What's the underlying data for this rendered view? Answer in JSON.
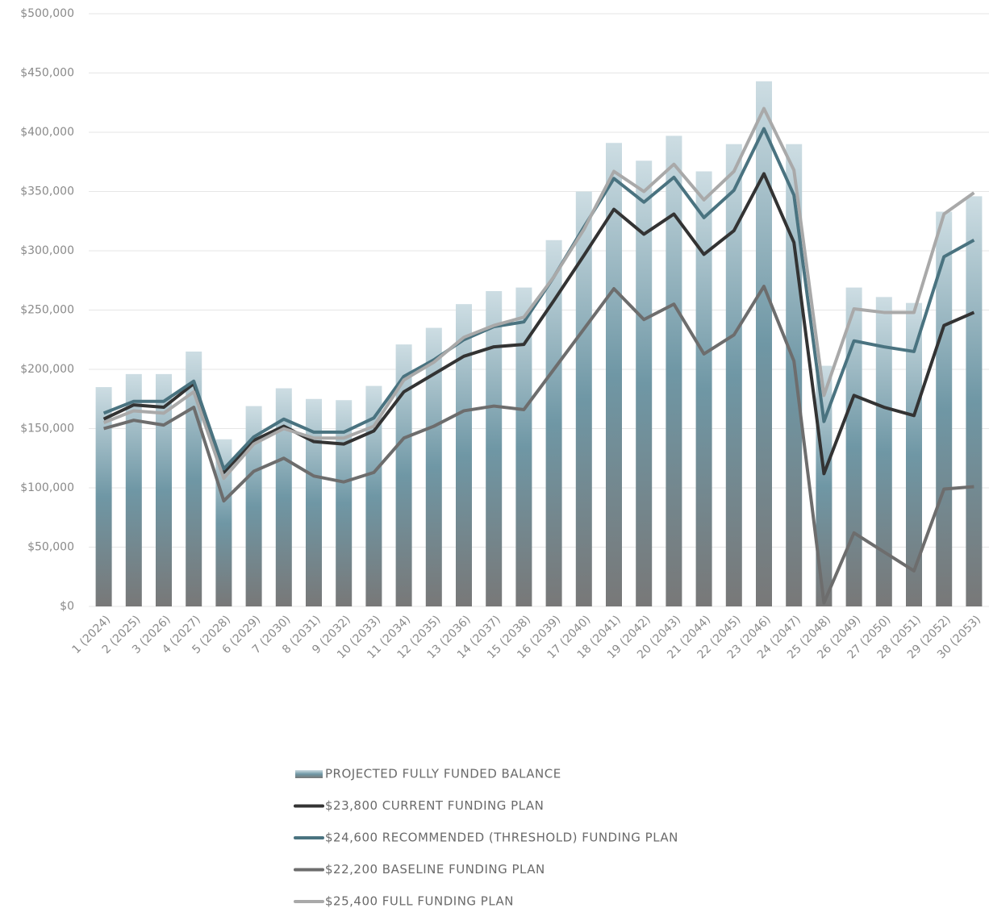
{
  "chart_data": {
    "type": "bar",
    "categories": [
      "1 (2024)",
      "2 (2025)",
      "3 (2026)",
      "4 (2027)",
      "5 (2028)",
      "6 (2029)",
      "7 (2030)",
      "8 (2031)",
      "9 (2032)",
      "10 (2033)",
      "11 (2034)",
      "12 (2035)",
      "13 (2036)",
      "14 (2037)",
      "15 (2038)",
      "16 (2039)",
      "17 (2040)",
      "18 (2041)",
      "19 (2042)",
      "20 (2043)",
      "21 (2044)",
      "22 (2045)",
      "23 (2046)",
      "24 (2047)",
      "25 (2048)",
      "26 (2049)",
      "27 (2050)",
      "28 (2051)",
      "29 (2052)",
      "30 (2053)"
    ],
    "series": [
      {
        "name": "PROJECTED FULLY FUNDED BALANCE",
        "type": "bar",
        "gradient": [
          "#cddde3",
          "#6f97a5",
          "#787878"
        ],
        "values": [
          185000,
          196000,
          196000,
          215000,
          141000,
          169000,
          184000,
          175000,
          174000,
          186000,
          221000,
          235000,
          255000,
          266000,
          269000,
          309000,
          350000,
          391000,
          376000,
          397000,
          367000,
          390000,
          443000,
          390000,
          203000,
          269000,
          261000,
          256000,
          333000,
          346000
        ]
      },
      {
        "name": "$23,800  CURRENT FUNDING PLAN",
        "type": "line",
        "color": "#333333",
        "values": [
          158000,
          170000,
          168000,
          188000,
          113000,
          140000,
          152000,
          139000,
          137000,
          148000,
          181000,
          196000,
          211000,
          219000,
          221000,
          258000,
          296000,
          335000,
          314000,
          331000,
          297000,
          317000,
          365000,
          307000,
          112000,
          178000,
          168000,
          161000,
          237000,
          248000
        ]
      },
      {
        "name": "$24,600  RECOMMENDED (THRESHOLD) FUNDING PLAN",
        "type": "line",
        "color": "#4a7380",
        "values": [
          163000,
          173000,
          173000,
          190000,
          116000,
          143000,
          158000,
          147000,
          147000,
          159000,
          194000,
          208000,
          225000,
          236000,
          240000,
          278000,
          320000,
          361000,
          341000,
          362000,
          328000,
          351000,
          403000,
          347000,
          156000,
          224000,
          219000,
          215000,
          295000,
          309000
        ]
      },
      {
        "name": "$22,200  BASELINE FUNDING PLAN",
        "type": "line",
        "color": "#6d6d6d",
        "values": [
          150000,
          157000,
          153000,
          168000,
          89000,
          114000,
          125000,
          110000,
          105000,
          113000,
          142000,
          152000,
          165000,
          169000,
          166000,
          200000,
          234000,
          268000,
          242000,
          255000,
          213000,
          229000,
          270000,
          207000,
          3000,
          62000,
          46000,
          30000,
          99000,
          101000
        ]
      },
      {
        "name": "$25,400  FULL FUNDING PLAN",
        "type": "line",
        "color": "#a9a9a9",
        "values": [
          155000,
          165000,
          163000,
          181000,
          108000,
          137000,
          150000,
          142000,
          142000,
          152000,
          191000,
          206000,
          227000,
          237000,
          244000,
          278000,
          318000,
          367000,
          350000,
          373000,
          343000,
          367000,
          420000,
          368000,
          178000,
          251000,
          248000,
          248000,
          331000,
          349000
        ]
      }
    ],
    "ylim": [
      0,
      500000
    ],
    "yticks": [
      {
        "value": 0,
        "label": "$0"
      },
      {
        "value": 50000,
        "label": "$50,000"
      },
      {
        "value": 100000,
        "label": "$100,000"
      },
      {
        "value": 150000,
        "label": "$150,000"
      },
      {
        "value": 200000,
        "label": "$200,000"
      },
      {
        "value": 250000,
        "label": "$250,000"
      },
      {
        "value": 300000,
        "label": "$300,000"
      },
      {
        "value": 350000,
        "label": "$350,000"
      },
      {
        "value": 400000,
        "label": "$400,000"
      },
      {
        "value": 450000,
        "label": "$450,000"
      },
      {
        "value": 500000,
        "label": "$500,000"
      }
    ],
    "grid": true
  }
}
